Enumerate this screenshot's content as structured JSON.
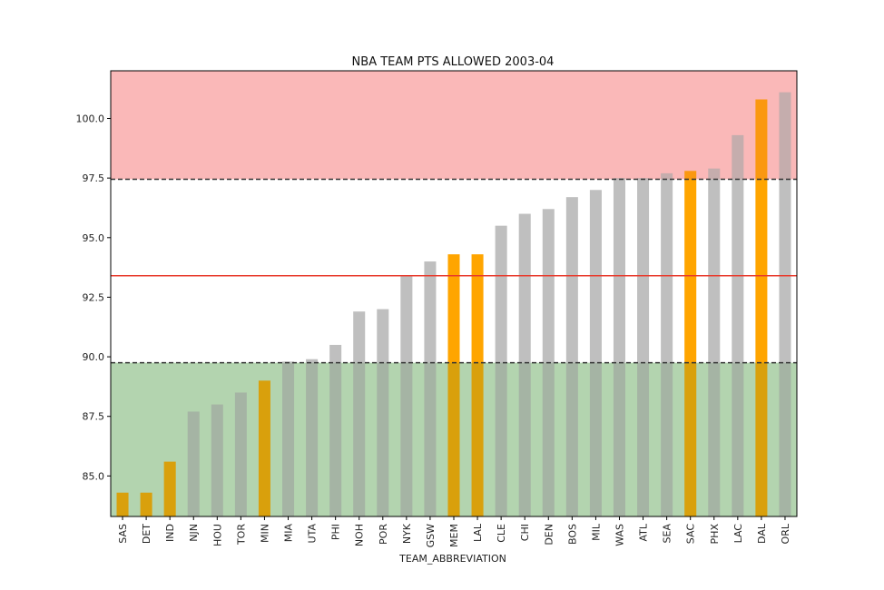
{
  "chart_data": {
    "type": "bar",
    "title": "NBA TEAM PTS ALLOWED 2003-04",
    "xlabel": "TEAM_ABBREVIATION",
    "ylabel": "",
    "ylim": [
      83.3,
      102.0
    ],
    "yticks": [
      "85.0",
      "87.5",
      "90.0",
      "92.5",
      "95.0",
      "97.5",
      "100.0"
    ],
    "categories": [
      "SAS",
      "DET",
      "IND",
      "NJN",
      "HOU",
      "TOR",
      "MIN",
      "MIA",
      "UTA",
      "PHI",
      "NOH",
      "POR",
      "NYK",
      "GSW",
      "MEM",
      "LAL",
      "CLE",
      "CHI",
      "DEN",
      "BOS",
      "MIL",
      "WAS",
      "ATL",
      "SEA",
      "SAC",
      "PHX",
      "LAC",
      "DAL",
      "ORL"
    ],
    "values": [
      84.3,
      84.3,
      85.6,
      87.7,
      88.0,
      88.5,
      89.0,
      89.8,
      89.9,
      90.5,
      91.9,
      92.0,
      93.4,
      94.0,
      94.3,
      94.3,
      95.5,
      96.0,
      96.2,
      96.7,
      97.0,
      97.5,
      97.5,
      97.7,
      97.8,
      97.9,
      99.3,
      100.8,
      101.1
    ],
    "highlighted": [
      "SAS",
      "DET",
      "IND",
      "MIN",
      "MEM",
      "LAL",
      "SAC",
      "DAL"
    ],
    "mean_line": 93.4,
    "upper_threshold": 97.45,
    "lower_threshold": 89.75,
    "colors": {
      "bar_default": "#bfbfbf",
      "bar_highlight": "#ffa500",
      "band_upper": "#ffcccc",
      "band_lower": "#d0e6cc",
      "mean_line": "#e83a2c",
      "threshold_line": "#333333"
    }
  }
}
